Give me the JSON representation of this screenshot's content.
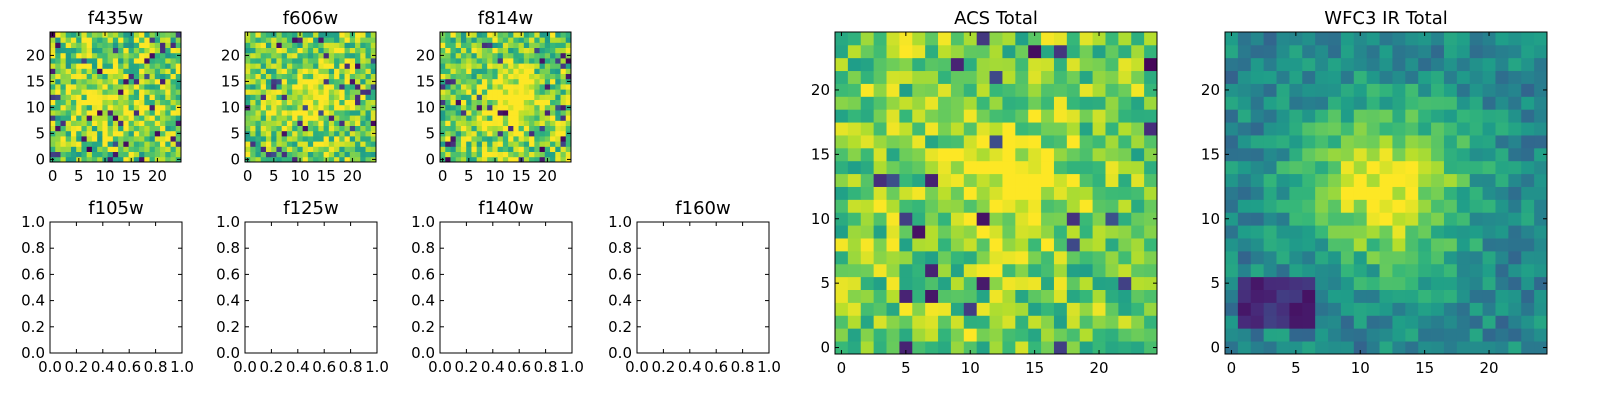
{
  "chart_data": [
    {
      "type": "heatmap",
      "title": "f435w",
      "grid_size": 25,
      "xlim": [
        -0.5,
        24.5
      ],
      "ylim": [
        -0.5,
        24.5
      ],
      "xticks": [
        0,
        5,
        10,
        15,
        20
      ],
      "yticks": [
        0,
        5,
        10,
        15,
        20
      ],
      "colormap": "viridis",
      "values_note": "noisy pixel values, range 0-1, mostly 0.6-0.95",
      "seed": 11,
      "noise": 0.55,
      "blob": {
        "cx": 12,
        "cy": 11,
        "sigma": 4,
        "amp": 0.15
      },
      "dark_prob": 0.07
    },
    {
      "type": "heatmap",
      "title": "f606w",
      "grid_size": 25,
      "xlim": [
        -0.5,
        24.5
      ],
      "ylim": [
        -0.5,
        24.5
      ],
      "xticks": [
        0,
        5,
        10,
        15,
        20
      ],
      "yticks": [
        0,
        5,
        10,
        15,
        20
      ],
      "colormap": "viridis",
      "seed": 23,
      "noise": 0.5,
      "blob": {
        "cx": 12,
        "cy": 11,
        "sigma": 4,
        "amp": 0.25
      },
      "dark_prob": 0.05
    },
    {
      "type": "heatmap",
      "title": "f814w",
      "grid_size": 25,
      "xlim": [
        -0.5,
        24.5
      ],
      "ylim": [
        -0.5,
        24.5
      ],
      "xticks": [
        0,
        5,
        10,
        15,
        20
      ],
      "yticks": [
        0,
        5,
        10,
        15,
        20
      ],
      "colormap": "viridis",
      "seed": 37,
      "noise": 0.5,
      "blob": {
        "cx": 14,
        "cy": 11,
        "sigma": 3.5,
        "amp": 0.35
      },
      "dark_prob": 0.06
    },
    {
      "type": "empty",
      "title": "f105w",
      "xlim": [
        0,
        1
      ],
      "ylim": [
        0,
        1
      ],
      "xticks": [
        "0.0",
        "0.2",
        "0.4",
        "0.6",
        "0.8",
        "1.0"
      ],
      "yticks": [
        "0.0",
        "0.2",
        "0.4",
        "0.6",
        "0.8",
        "1.0"
      ]
    },
    {
      "type": "empty",
      "title": "f125w",
      "xlim": [
        0,
        1
      ],
      "ylim": [
        0,
        1
      ],
      "xticks": [
        "0.0",
        "0.2",
        "0.4",
        "0.6",
        "0.8",
        "1.0"
      ],
      "yticks": [
        "0.0",
        "0.2",
        "0.4",
        "0.6",
        "0.8",
        "1.0"
      ]
    },
    {
      "type": "empty",
      "title": "f140w",
      "xlim": [
        0,
        1
      ],
      "ylim": [
        0,
        1
      ],
      "xticks": [
        "0.0",
        "0.2",
        "0.4",
        "0.6",
        "0.8",
        "1.0"
      ],
      "yticks": [
        "0.0",
        "0.2",
        "0.4",
        "0.6",
        "0.8",
        "1.0"
      ]
    },
    {
      "type": "empty",
      "title": "f160w",
      "xlim": [
        0,
        1
      ],
      "ylim": [
        0,
        1
      ],
      "xticks": [
        "0.0",
        "0.2",
        "0.4",
        "0.6",
        "0.8",
        "1.0"
      ],
      "yticks": [
        "0.0",
        "0.2",
        "0.4",
        "0.6",
        "0.8",
        "1.0"
      ]
    },
    {
      "type": "heatmap",
      "title": "ACS Total",
      "grid_size": 25,
      "xlim": [
        -0.5,
        24.5
      ],
      "ylim": [
        -0.5,
        24.5
      ],
      "xticks": [
        0,
        5,
        10,
        15,
        20
      ],
      "yticks": [
        0,
        5,
        10,
        15,
        20
      ],
      "colormap": "viridis",
      "seed": 53,
      "noise": 0.45,
      "blob": {
        "cx": 13,
        "cy": 13,
        "sigma": 3,
        "amp": 0.3
      },
      "dark_prob": 0.05
    },
    {
      "type": "heatmap",
      "title": "WFC3 IR Total",
      "grid_size": 25,
      "xlim": [
        -0.5,
        24.5
      ],
      "ylim": [
        -0.5,
        24.5
      ],
      "xticks": [
        0,
        5,
        10,
        15,
        20
      ],
      "yticks": [
        0,
        5,
        10,
        15,
        20
      ],
      "colormap": "viridis",
      "seed": 71,
      "noise": 0.18,
      "base": 0.45,
      "blob": {
        "cx": 12,
        "cy": 12.5,
        "sigma": 4.5,
        "amp": 0.55
      },
      "dark_prob": 0.0,
      "dark_region": {
        "x0": 1,
        "x1": 6,
        "y0": 2,
        "y1": 5
      }
    }
  ]
}
